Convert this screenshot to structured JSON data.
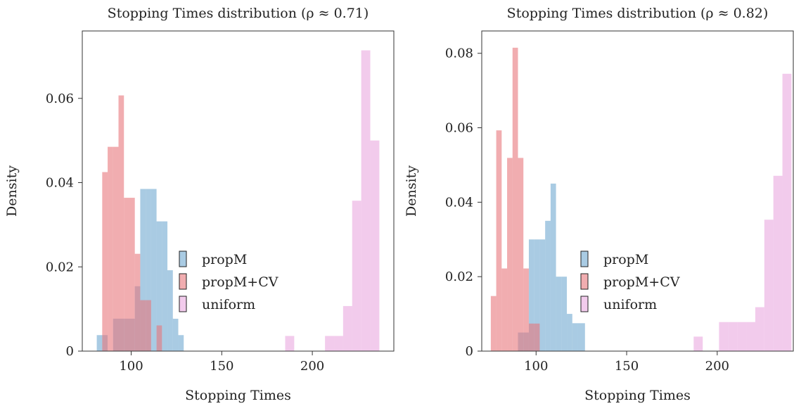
{
  "chart_data": [
    {
      "type": "histogram",
      "title": "Stopping Times distribution (ρ ≈ 0.71)",
      "xlabel": "Stopping Times",
      "ylabel": "Density",
      "xlim": [
        73,
        245
      ],
      "ylim": [
        0,
        0.076
      ],
      "xticks": [
        100,
        150,
        200
      ],
      "xtick_labels": [
        "100",
        "150",
        "200"
      ],
      "yticks": [
        0,
        0.02,
        0.04,
        0.06
      ],
      "ytick_labels": [
        "0",
        "0.02",
        "0.04",
        "0.06"
      ],
      "legend_position": "center-right",
      "series": [
        {
          "name": "propM",
          "color": "#6fa8d0",
          "bins": [
            {
              "x0": 81,
              "x1": 84,
              "y": 0.0038
            },
            {
              "x0": 84,
              "x1": 87,
              "y": 0.0038
            },
            {
              "x0": 87,
              "x1": 90,
              "y": 0.0
            },
            {
              "x0": 90,
              "x1": 93,
              "y": 0.0077
            },
            {
              "x0": 93,
              "x1": 96,
              "y": 0.0077
            },
            {
              "x0": 96,
              "x1": 99,
              "y": 0.0077
            },
            {
              "x0": 99,
              "x1": 102,
              "y": 0.0077
            },
            {
              "x0": 102,
              "x1": 105,
              "y": 0.0154
            },
            {
              "x0": 105,
              "x1": 108,
              "y": 0.0385
            },
            {
              "x0": 108,
              "x1": 111,
              "y": 0.0385
            },
            {
              "x0": 111,
              "x1": 114,
              "y": 0.0385
            },
            {
              "x0": 114,
              "x1": 117,
              "y": 0.0308
            },
            {
              "x0": 117,
              "x1": 120,
              "y": 0.0308
            },
            {
              "x0": 120,
              "x1": 123,
              "y": 0.0192
            },
            {
              "x0": 123,
              "x1": 126,
              "y": 0.0077
            },
            {
              "x0": 126,
              "x1": 129,
              "y": 0.0038
            }
          ]
        },
        {
          "name": "propM+CV",
          "color": "#e8767c",
          "bins": [
            {
              "x0": 84,
              "x1": 87,
              "y": 0.0425
            },
            {
              "x0": 87,
              "x1": 90,
              "y": 0.0485
            },
            {
              "x0": 90,
              "x1": 93,
              "y": 0.0485
            },
            {
              "x0": 93,
              "x1": 96,
              "y": 0.0607
            },
            {
              "x0": 96,
              "x1": 99,
              "y": 0.0364
            },
            {
              "x0": 99,
              "x1": 102,
              "y": 0.0364
            },
            {
              "x0": 102,
              "x1": 105,
              "y": 0.0231
            },
            {
              "x0": 105,
              "x1": 108,
              "y": 0.0121
            },
            {
              "x0": 108,
              "x1": 111,
              "y": 0.0121
            },
            {
              "x0": 111,
              "x1": 114,
              "y": 0.0
            },
            {
              "x0": 114,
              "x1": 117,
              "y": 0.0061
            }
          ]
        },
        {
          "name": "uniform",
          "color": "#eaa9e0",
          "bins": [
            {
              "x0": 185,
              "x1": 190,
              "y": 0.0036
            },
            {
              "x0": 207,
              "x1": 212,
              "y": 0.0036
            },
            {
              "x0": 212,
              "x1": 217,
              "y": 0.0036
            },
            {
              "x0": 217,
              "x1": 222,
              "y": 0.0107
            },
            {
              "x0": 222,
              "x1": 227,
              "y": 0.0357
            },
            {
              "x0": 227,
              "x1": 232,
              "y": 0.0714
            },
            {
              "x0": 232,
              "x1": 237,
              "y": 0.05
            }
          ]
        }
      ]
    },
    {
      "type": "histogram",
      "title": "Stopping Times distribution (ρ ≈ 0.82)",
      "xlabel": "Stopping Times",
      "ylabel": "Density",
      "xlim": [
        70,
        242
      ],
      "ylim": [
        0,
        0.086
      ],
      "xticks": [
        100,
        150,
        200
      ],
      "xtick_labels": [
        "100",
        "150",
        "200"
      ],
      "yticks": [
        0,
        0.02,
        0.04,
        0.06,
        0.08
      ],
      "ytick_labels": [
        "0",
        "0.02",
        "0.04",
        "0.06",
        "0.08"
      ],
      "legend_position": "center-right",
      "series": [
        {
          "name": "propM",
          "color": "#6fa8d0",
          "bins": [
            {
              "x0": 87,
              "x1": 90,
              "y": 0.0
            },
            {
              "x0": 90,
              "x1": 93,
              "y": 0.005
            },
            {
              "x0": 93,
              "x1": 96,
              "y": 0.005
            },
            {
              "x0": 96,
              "x1": 99,
              "y": 0.03
            },
            {
              "x0": 99,
              "x1": 102,
              "y": 0.03
            },
            {
              "x0": 102,
              "x1": 105,
              "y": 0.03
            },
            {
              "x0": 105,
              "x1": 108,
              "y": 0.035
            },
            {
              "x0": 108,
              "x1": 111,
              "y": 0.045
            },
            {
              "x0": 111,
              "x1": 114,
              "y": 0.02
            },
            {
              "x0": 114,
              "x1": 117,
              "y": 0.02
            },
            {
              "x0": 117,
              "x1": 120,
              "y": 0.01
            },
            {
              "x0": 120,
              "x1": 123,
              "y": 0.0075
            },
            {
              "x0": 123,
              "x1": 127,
              "y": 0.0075
            }
          ]
        },
        {
          "name": "propM+CV",
          "color": "#e8767c",
          "bins": [
            {
              "x0": 75,
              "x1": 78,
              "y": 0.0148
            },
            {
              "x0": 78,
              "x1": 81,
              "y": 0.0593
            },
            {
              "x0": 81,
              "x1": 84,
              "y": 0.0222
            },
            {
              "x0": 84,
              "x1": 87,
              "y": 0.0519
            },
            {
              "x0": 87,
              "x1": 90,
              "y": 0.0815
            },
            {
              "x0": 90,
              "x1": 93,
              "y": 0.0519
            },
            {
              "x0": 93,
              "x1": 96,
              "y": 0.0222
            },
            {
              "x0": 96,
              "x1": 99,
              "y": 0.0074
            },
            {
              "x0": 99,
              "x1": 102,
              "y": 0.0074
            }
          ]
        },
        {
          "name": "uniform",
          "color": "#eaa9e0",
          "bins": [
            {
              "x0": 187,
              "x1": 192,
              "y": 0.0039
            },
            {
              "x0": 201,
              "x1": 206,
              "y": 0.0078
            },
            {
              "x0": 206,
              "x1": 211,
              "y": 0.0078
            },
            {
              "x0": 211,
              "x1": 216,
              "y": 0.0078
            },
            {
              "x0": 216,
              "x1": 221,
              "y": 0.0078
            },
            {
              "x0": 221,
              "x1": 226,
              "y": 0.0118
            },
            {
              "x0": 226,
              "x1": 231,
              "y": 0.0353
            },
            {
              "x0": 231,
              "x1": 236,
              "y": 0.0471
            },
            {
              "x0": 236,
              "x1": 241,
              "y": 0.0745
            }
          ]
        }
      ]
    }
  ]
}
